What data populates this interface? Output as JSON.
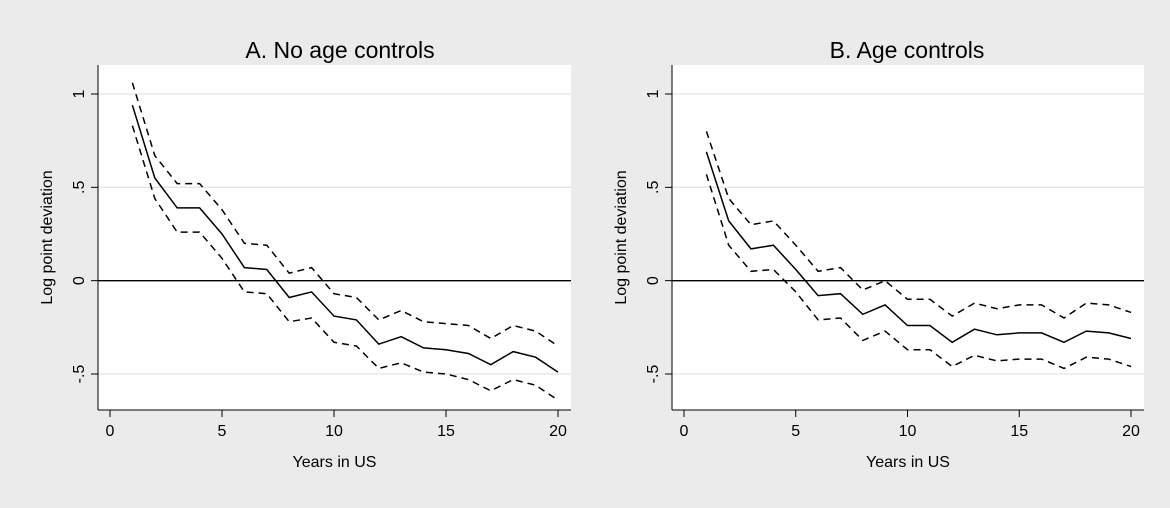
{
  "chart_data": [
    {
      "type": "line",
      "title": "A. No age controls",
      "xlabel": "Years in US",
      "ylabel": "Log point deviation",
      "xlim": [
        0,
        20
      ],
      "ylim": [
        -0.7,
        1.05
      ],
      "xticks": [
        0,
        5,
        10,
        15,
        20
      ],
      "xtick_labels": [
        "0",
        "5",
        "10",
        "15",
        "20"
      ],
      "yticks": [
        -0.5,
        0,
        0.5,
        1
      ],
      "ytick_labels": [
        "-.5",
        "0",
        ".5",
        "1"
      ],
      "grid": true,
      "reference_line_y": 0,
      "x": [
        1,
        2,
        3,
        4,
        5,
        6,
        7,
        8,
        9,
        10,
        11,
        12,
        13,
        14,
        15,
        16,
        17,
        18,
        19,
        20
      ],
      "series": [
        {
          "role": "upper",
          "style": "dashed",
          "values": [
            1.06,
            0.67,
            0.52,
            0.52,
            0.38,
            0.2,
            0.19,
            0.04,
            0.07,
            -0.07,
            -0.09,
            -0.21,
            -0.16,
            -0.22,
            -0.23,
            -0.24,
            -0.31,
            -0.24,
            -0.27,
            -0.35
          ]
        },
        {
          "role": "estimate",
          "style": "solid",
          "values": [
            0.94,
            0.55,
            0.39,
            0.39,
            0.25,
            0.07,
            0.06,
            -0.09,
            -0.06,
            -0.19,
            -0.21,
            -0.34,
            -0.3,
            -0.36,
            -0.37,
            -0.39,
            -0.45,
            -0.38,
            -0.41,
            -0.49
          ]
        },
        {
          "role": "lower",
          "style": "dashed",
          "values": [
            0.83,
            0.44,
            0.26,
            0.26,
            0.12,
            -0.06,
            -0.07,
            -0.22,
            -0.2,
            -0.33,
            -0.35,
            -0.47,
            -0.44,
            -0.49,
            -0.5,
            -0.53,
            -0.59,
            -0.53,
            -0.56,
            -0.64
          ]
        }
      ]
    },
    {
      "type": "line",
      "title": "B. Age controls",
      "xlabel": "Years in US",
      "ylabel": "Log point deviation",
      "xlim": [
        0,
        20
      ],
      "ylim": [
        -0.7,
        1.05
      ],
      "xticks": [
        0,
        5,
        10,
        15,
        20
      ],
      "xtick_labels": [
        "0",
        "5",
        "10",
        "15",
        "20"
      ],
      "yticks": [
        -0.5,
        0,
        0.5,
        1
      ],
      "ytick_labels": [
        "-.5",
        "0",
        ".5",
        "1"
      ],
      "grid": true,
      "reference_line_y": 0,
      "x": [
        1,
        2,
        3,
        4,
        5,
        6,
        7,
        8,
        9,
        10,
        11,
        12,
        13,
        14,
        15,
        16,
        17,
        18,
        19,
        20
      ],
      "series": [
        {
          "role": "upper",
          "style": "dashed",
          "values": [
            0.8,
            0.44,
            0.3,
            0.32,
            0.19,
            0.05,
            0.07,
            -0.05,
            0.0,
            -0.1,
            -0.1,
            -0.19,
            -0.12,
            -0.15,
            -0.13,
            -0.13,
            -0.2,
            -0.12,
            -0.13,
            -0.17
          ]
        },
        {
          "role": "estimate",
          "style": "solid",
          "values": [
            0.69,
            0.32,
            0.17,
            0.19,
            0.06,
            -0.08,
            -0.07,
            -0.18,
            -0.13,
            -0.24,
            -0.24,
            -0.33,
            -0.26,
            -0.29,
            -0.28,
            -0.28,
            -0.33,
            -0.27,
            -0.28,
            -0.31
          ]
        },
        {
          "role": "lower",
          "style": "dashed",
          "values": [
            0.57,
            0.19,
            0.05,
            0.06,
            -0.06,
            -0.21,
            -0.2,
            -0.32,
            -0.27,
            -0.37,
            -0.37,
            -0.46,
            -0.4,
            -0.43,
            -0.42,
            -0.42,
            -0.47,
            -0.41,
            -0.42,
            -0.46
          ]
        }
      ]
    }
  ]
}
